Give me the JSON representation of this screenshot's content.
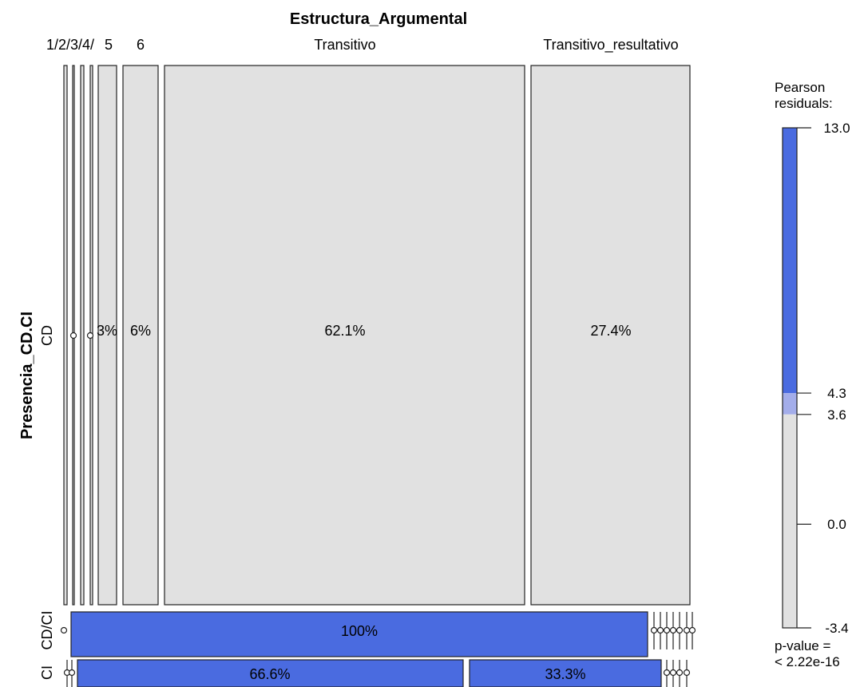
{
  "chart_data": {
    "type": "mosaic",
    "title": "Estructura_Argumental",
    "xlabel": "Estructura_Argumental",
    "ylabel": "Presencia_CD.CI",
    "x_categories": [
      "1",
      "2",
      "3",
      "4",
      "5",
      "6",
      "Transitivo",
      "Transitivo_resultativo"
    ],
    "top_labels": [
      "1/2/3/4/",
      "5",
      "6",
      "Transitivo",
      "Transitivo_resultativo"
    ],
    "y_categories": [
      "CD",
      "CD/CI",
      "CI"
    ],
    "rows": [
      {
        "category": "CD",
        "values": [
          0,
          0.3,
          0,
          1.2,
          3,
          6,
          62.1,
          27.4
        ],
        "labels": [
          "",
          "",
          "",
          "",
          "3%",
          "6%",
          "62.1%",
          "27.4%"
        ],
        "residual_level": [
          0,
          0,
          0,
          0,
          0,
          0,
          0,
          0
        ]
      },
      {
        "category": "CD/CI",
        "values": [
          0,
          100,
          0,
          0,
          0,
          0,
          0,
          0
        ],
        "labels": [
          "",
          "100%",
          "",
          "",
          "",
          "",
          "",
          ""
        ],
        "residual_level": [
          0,
          2,
          0,
          0,
          0,
          0,
          0,
          0
        ]
      },
      {
        "category": "CI",
        "values": [
          0,
          0,
          66.6,
          0,
          0,
          0,
          33.3,
          0
        ],
        "labels": [
          "",
          "",
          "66.6%",
          "",
          "",
          "",
          "33.3%",
          ""
        ],
        "residual_level": [
          0,
          0,
          2,
          0,
          0,
          0,
          2,
          0
        ]
      }
    ],
    "legend": {
      "title_lines": [
        "Pearson",
        "residuals:"
      ],
      "ticks": [
        13.0,
        4.3,
        3.6,
        0.0,
        -3.4
      ],
      "tick_labels": [
        "13.0",
        "4.3",
        "3.6",
        "0.0",
        "-3.4"
      ],
      "range": [
        -3.4,
        13.0
      ],
      "shade_levels": [
        {
          "from": 4.3,
          "to": 13.0,
          "color": "#4a6be0"
        },
        {
          "from": 3.6,
          "to": 4.3,
          "color": "#a3adea"
        },
        {
          "from": -3.4,
          "to": 3.6,
          "color": "#e1e1e1"
        }
      ],
      "pvalue_lines": [
        "p-value =",
        "< 2.22e-16"
      ]
    },
    "colors": {
      "neutral": "#e1e1e1",
      "mid": "#a3adea",
      "strong": "#4a6be0"
    }
  }
}
